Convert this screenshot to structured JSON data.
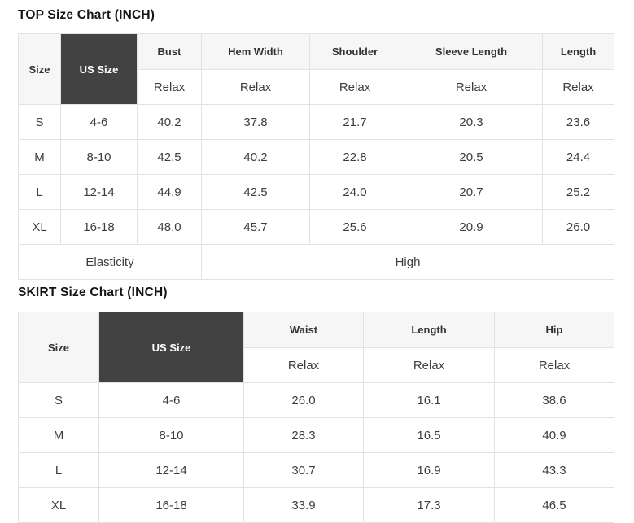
{
  "colors": {
    "dark_header_bg": "#424242",
    "dark_header_text": "#ffffff",
    "light_header_bg": "#f6f6f6",
    "grid_border": "#e2e2e2"
  },
  "top_chart": {
    "title": "TOP Size Chart (INCH)",
    "corner": {
      "size_label": "Size",
      "us_size_label": "US Size"
    },
    "measure_columns": [
      {
        "label": "Bust",
        "fit": "Relax"
      },
      {
        "label": "Hem Width",
        "fit": "Relax"
      },
      {
        "label": "Shoulder",
        "fit": "Relax"
      },
      {
        "label": "Sleeve Length",
        "fit": "Relax"
      },
      {
        "label": "Length",
        "fit": "Relax"
      }
    ],
    "rows": [
      {
        "size": "S",
        "us_size": "4-6",
        "values": [
          "40.2",
          "37.8",
          "21.7",
          "20.3",
          "23.6"
        ]
      },
      {
        "size": "M",
        "us_size": "8-10",
        "values": [
          "42.5",
          "40.2",
          "22.8",
          "20.5",
          "24.4"
        ]
      },
      {
        "size": "L",
        "us_size": "12-14",
        "values": [
          "44.9",
          "42.5",
          "24.0",
          "20.7",
          "25.2"
        ]
      },
      {
        "size": "XL",
        "us_size": "16-18",
        "values": [
          "48.0",
          "45.7",
          "25.6",
          "20.9",
          "26.0"
        ]
      }
    ],
    "footer": {
      "label": "Elasticity",
      "value": "High"
    }
  },
  "skirt_chart": {
    "title": "SKIRT Size Chart (INCH)",
    "corner": {
      "size_label": "Size",
      "us_size_label": "US Size"
    },
    "measure_columns": [
      {
        "label": "Waist",
        "fit": "Relax"
      },
      {
        "label": "Length",
        "fit": "Relax"
      },
      {
        "label": "Hip",
        "fit": "Relax"
      }
    ],
    "rows": [
      {
        "size": "S",
        "us_size": "4-6",
        "values": [
          "26.0",
          "16.1",
          "38.6"
        ]
      },
      {
        "size": "M",
        "us_size": "8-10",
        "values": [
          "28.3",
          "16.5",
          "40.9"
        ]
      },
      {
        "size": "L",
        "us_size": "12-14",
        "values": [
          "30.7",
          "16.9",
          "43.3"
        ]
      },
      {
        "size": "XL",
        "us_size": "16-18",
        "values": [
          "33.9",
          "17.3",
          "46.5"
        ]
      }
    ]
  }
}
